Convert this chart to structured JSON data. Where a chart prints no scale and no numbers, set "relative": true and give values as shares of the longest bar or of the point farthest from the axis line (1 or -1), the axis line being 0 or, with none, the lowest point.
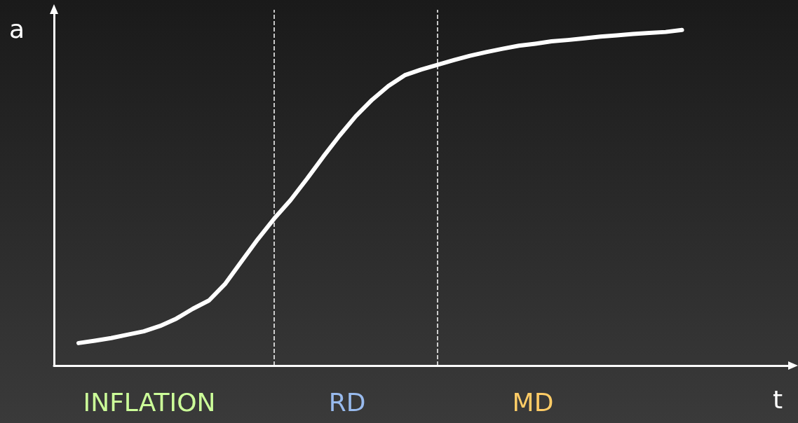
{
  "chart_data": {
    "type": "line",
    "relative": true,
    "xlabel": "t",
    "ylabel": "a",
    "tick_labels": false,
    "grid": false,
    "marker": "none",
    "line_style": "solid",
    "categories": [
      null,
      null,
      null,
      null,
      null,
      null,
      null,
      null,
      null,
      null,
      null,
      null,
      null,
      null,
      null,
      null,
      null,
      null,
      null,
      null,
      null,
      null,
      null,
      null,
      null,
      null,
      null,
      null,
      null,
      null,
      null,
      null,
      null,
      null,
      null,
      null,
      null,
      null
    ],
    "series": [
      {
        "color": "#ffffff",
        "values": [
          0.067,
          0.074,
          0.082,
          0.092,
          0.102,
          0.118,
          0.14,
          0.169,
          0.194,
          0.244,
          0.311,
          0.377,
          0.438,
          0.493,
          0.556,
          0.622,
          0.685,
          0.743,
          0.792,
          0.833,
          0.865,
          0.882,
          0.896,
          0.91,
          0.923,
          0.934,
          0.944,
          0.953,
          0.959,
          0.966,
          0.97,
          0.975,
          0.98,
          0.984,
          0.988,
          0.991,
          0.994,
          1
        ]
      }
    ],
    "annotations": [
      "INFLATION",
      "RD",
      "MD"
    ]
  }
}
